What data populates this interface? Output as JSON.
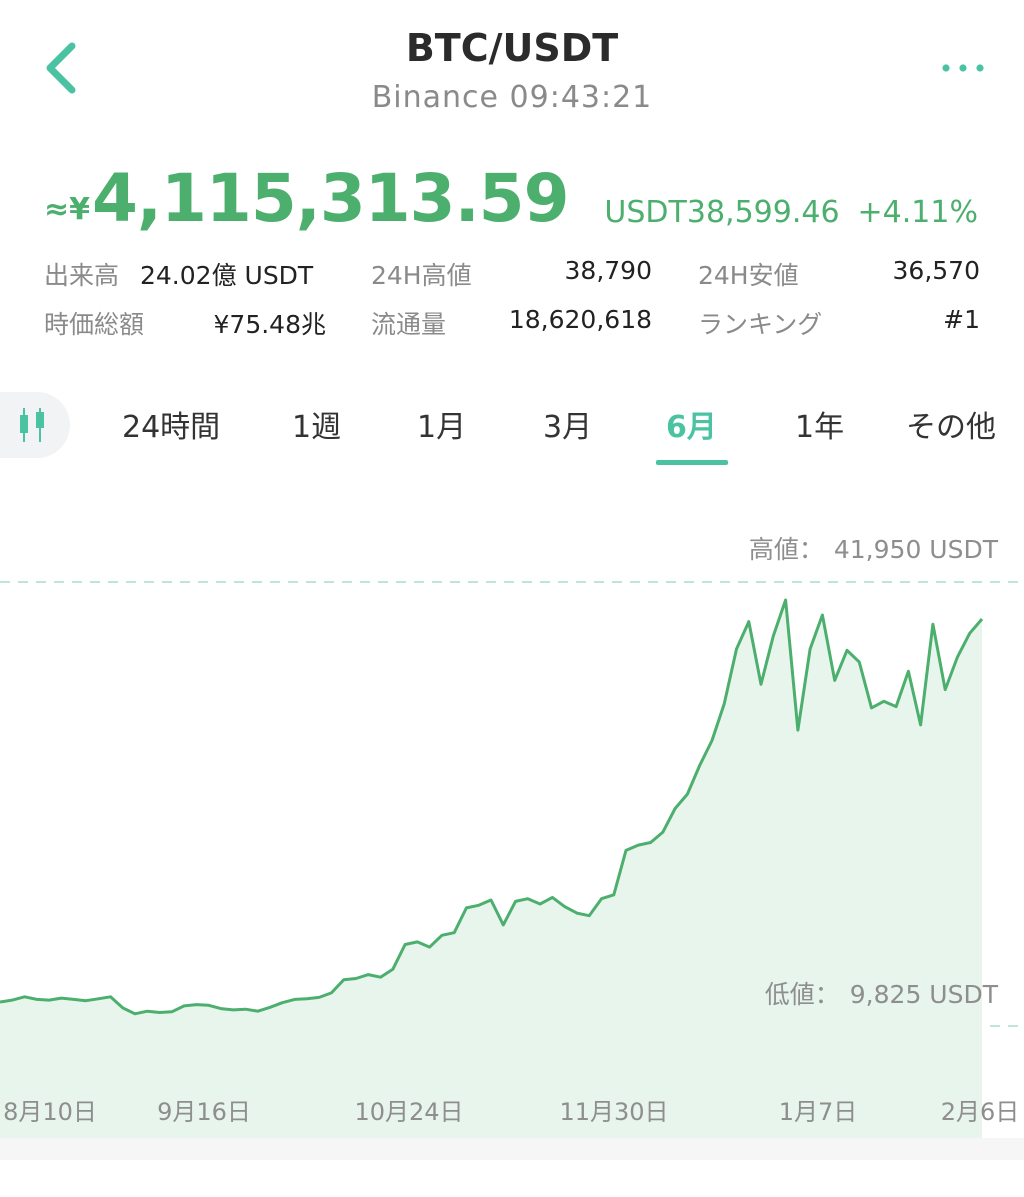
{
  "header": {
    "title": "BTC/USDT",
    "subtitle": "Binance 09:43:21"
  },
  "price": {
    "approx_symbol": "≈¥",
    "jpy": "4,115,313.59",
    "usdt_label": "USDT",
    "usdt_value": "38,599.46",
    "change": "+4.11%"
  },
  "stats": [
    {
      "label": "出来高",
      "value": "24.02億 USDT"
    },
    {
      "label": "24H高値",
      "value": "38,790"
    },
    {
      "label": "24H安値",
      "value": "36,570"
    },
    {
      "label": "時価総額",
      "value": "¥75.48兆"
    },
    {
      "label": "流通量",
      "value": "18,620,618"
    },
    {
      "label": "ランキング",
      "value": "#1"
    }
  ],
  "tabs": [
    {
      "label": "24時間",
      "active": false
    },
    {
      "label": "1週",
      "active": false
    },
    {
      "label": "1月",
      "active": false
    },
    {
      "label": "3月",
      "active": false
    },
    {
      "label": "6月",
      "active": true
    },
    {
      "label": "1年",
      "active": false
    },
    {
      "label": "その他",
      "active": false
    }
  ],
  "colors": {
    "accent": "#4bc3a3",
    "price_green": "#4caf6e",
    "line": "#4caf6e",
    "fill": "#e8f5ed"
  },
  "icons": {
    "back": "chevron-left-icon",
    "more": "more-dots-icon",
    "candle": "candlestick-icon"
  },
  "chart_data": {
    "type": "area",
    "high_label": "高値：",
    "high_value": "41,950 USDT",
    "low_label": "低値：",
    "low_value": "9,825 USDT",
    "x_ticks": [
      "8月10日",
      "9月16日",
      "10月24日",
      "11月30日",
      "1月7日",
      "2月6日"
    ],
    "y_unit": "USDT",
    "series": [
      {
        "values": [
          11200,
          11350,
          11600,
          11400,
          11350,
          11500,
          11400,
          11300,
          11450,
          11600,
          10750,
          10300,
          10500,
          10400,
          10450,
          10900,
          11000,
          10950,
          10700,
          10600,
          10650,
          10500,
          10800,
          11150,
          11400,
          11450,
          11550,
          11900,
          12900,
          13000,
          13300,
          13100,
          13700,
          15600,
          15800,
          15400,
          16300,
          16500,
          18400,
          18600,
          19000,
          17100,
          18900,
          19100,
          18700,
          19200,
          18500,
          18000,
          17800,
          19100,
          19400,
          22800,
          23200,
          23400,
          24200,
          26000,
          27100,
          29300,
          31200,
          34000,
          38200,
          40300,
          35500,
          39200,
          41950,
          32000,
          38200,
          40800,
          35800,
          38100,
          37200,
          33700,
          34200,
          33800,
          36500,
          32400,
          40100,
          35100,
          37600,
          39400,
          40500
        ]
      }
    ]
  }
}
